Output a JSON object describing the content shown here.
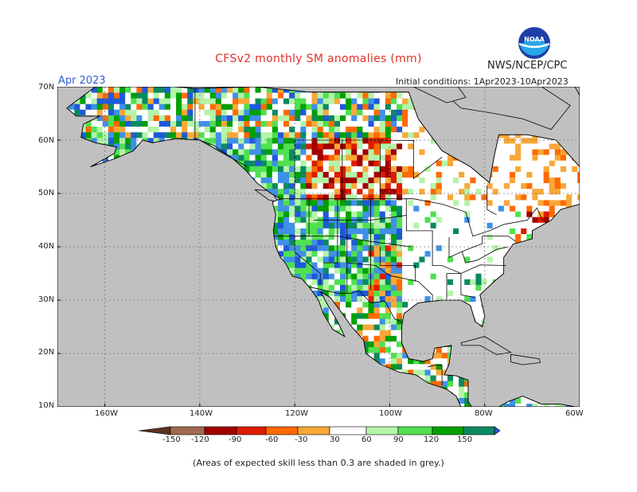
{
  "title": "CFSv2 monthly SM anomalies (mm)",
  "month_label": "Apr 2023",
  "organization": "NWS/NCEP/CPC",
  "logo_text": "NOAA",
  "initial_conditions": "Initial conditions: 1Apr2023-10Apr2023",
  "lat_labels": [
    "70N",
    "60N",
    "50N",
    "40N",
    "30N",
    "20N",
    "10N"
  ],
  "lon_labels": [
    "160W",
    "140W",
    "120W",
    "100W",
    "80W",
    "60W"
  ],
  "legend": {
    "ticks": [
      "-150",
      "-120",
      "-90",
      "-60",
      "-30",
      "30",
      "60",
      "90",
      "120",
      "150"
    ],
    "colors": [
      "#5a3324",
      "#a06a50",
      "#a00000",
      "#dd1c00",
      "#ff6a00",
      "#f8a838",
      "#ffffff",
      "#b4f4a8",
      "#50e050",
      "#00a000",
      "#0a8a60",
      "#4090e8",
      "#1e5ad8"
    ]
  },
  "note": "(Areas of expected skill less than 0.3 are shaded in grey.)",
  "colors": {
    "ocean": "#c0c0c0",
    "grey_land": "#c0c0c0",
    "title": "#e0302a",
    "month": "#2f5fd0"
  }
}
